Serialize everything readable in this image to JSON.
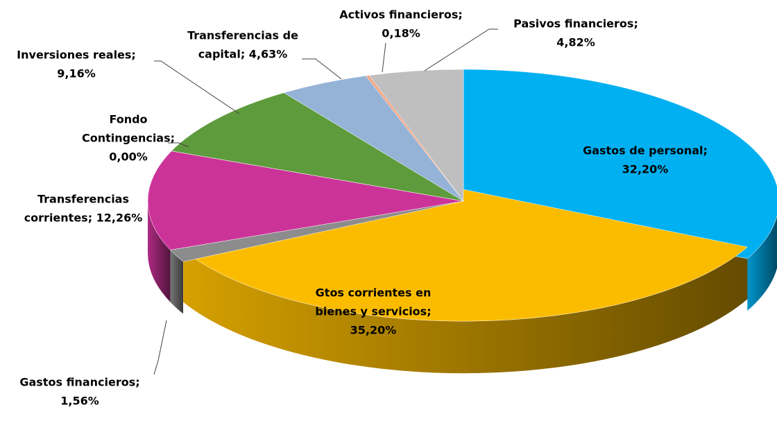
{
  "chart_data": {
    "type": "pie3d",
    "values": [
      32.2,
      35.2,
      1.56,
      12.26,
      0.0,
      9.16,
      4.63,
      0.18,
      4.82
    ],
    "value_labels": [
      [
        "Gastos de personal;",
        "32,20%"
      ],
      [
        "Gtos corrientes en",
        "bienes y servicios;",
        "35,20%"
      ],
      [
        "Gastos financieros;",
        "1,56%"
      ],
      [
        "Transferencias",
        "corrientes; 12,26%"
      ],
      [
        "Fondo",
        "Contingencias;",
        "0,00%"
      ],
      [
        "Inversiones reales;",
        "9,16%"
      ],
      [
        "Transferencias de",
        "capital; 4,63%"
      ],
      [
        "Activos financieros;",
        "0,18%"
      ],
      [
        "Pasivos financieros;",
        "4,82%"
      ]
    ],
    "colors": [
      "#00b0f0",
      "#fbbc00",
      "#8c8c8c",
      "#cc3399",
      "#7f7f7f",
      "#5e9b3c",
      "#95b3d7",
      "#f4a582",
      "#bfbfbf"
    ]
  }
}
